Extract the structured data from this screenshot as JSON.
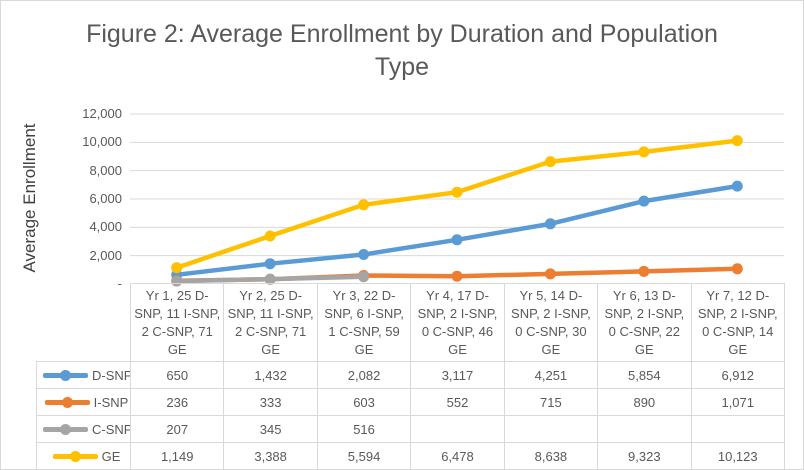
{
  "chart_data": {
    "type": "line",
    "title": "Figure 2: Average Enrollment by Duration and Population Type",
    "ylabel": "Average Enrollment",
    "xlabel": "",
    "ylim": [
      0,
      12000
    ],
    "grid": true,
    "gridline_color": "#D9D9D9",
    "text_color": "#595959",
    "border_color": "#D9D9D9",
    "legend_position": "data-table-left",
    "yticks": [
      {
        "value": 12000,
        "label": "12,000"
      },
      {
        "value": 10000,
        "label": "10,000"
      },
      {
        "value": 8000,
        "label": "8,000"
      },
      {
        "value": 6000,
        "label": "6,000"
      },
      {
        "value": 4000,
        "label": "4,000"
      },
      {
        "value": 2000,
        "label": "2,000"
      },
      {
        "value": 0,
        "label": "-"
      }
    ],
    "categories": [
      "Yr 1, 25 D-SNP, 11 I-SNP, 2 C-SNP, 71 GE",
      "Yr 2, 25 D-SNP, 11 I-SNP, 2 C-SNP, 71 GE",
      "Yr 3, 22 D-SNP, 6 I-SNP, 1 C-SNP, 59 GE",
      "Yr 4, 17 D-SNP, 2 I-SNP, 0 C-SNP, 46 GE",
      "Yr 5, 14 D-SNP, 2 I-SNP, 0 C-SNP, 30 GE",
      "Yr 6, 13 D-SNP, 2 I-SNP, 0 C-SNP, 22 GE",
      "Yr 7, 12 D-SNP, 2 I-SNP, 0 C-SNP, 14 GE"
    ],
    "series": [
      {
        "name": "D-SNP",
        "color": "#5B9BD5",
        "values": [
          650,
          1432,
          2082,
          3117,
          4251,
          5854,
          6912
        ],
        "table_values": [
          "650",
          "1,432",
          "2,082",
          "3,117",
          "4,251",
          "5,854",
          "6,912"
        ]
      },
      {
        "name": "I-SNP",
        "color": "#ED7D31",
        "values": [
          236,
          333,
          603,
          552,
          715,
          890,
          1071
        ],
        "table_values": [
          "236",
          "333",
          "603",
          "552",
          "715",
          "890",
          "1,071"
        ]
      },
      {
        "name": "C-SNP",
        "color": "#A5A5A5",
        "values": [
          207,
          345,
          516,
          null,
          null,
          null,
          null
        ],
        "table_values": [
          "207",
          "345",
          "516",
          "",
          "",
          "",
          ""
        ]
      },
      {
        "name": "GE",
        "color": "#FFC000",
        "values": [
          1149,
          3388,
          5594,
          6478,
          8638,
          9323,
          10123
        ],
        "table_values": [
          "1,149",
          "3,388",
          "5,594",
          "6,478",
          "8,638",
          "9,323",
          "10,123"
        ]
      }
    ]
  }
}
